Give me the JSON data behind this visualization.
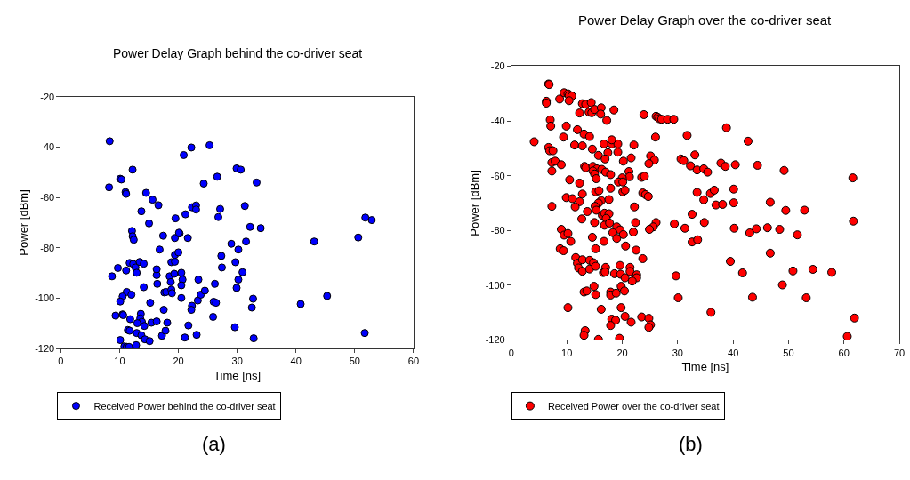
{
  "chart_data": [
    {
      "type": "scatter",
      "title": "Power Delay Graph behind the co-driver seat",
      "xlabel": "Time [ns]",
      "ylabel": "Power [dBm]",
      "xlim": [
        0,
        60
      ],
      "ylim": [
        -120,
        -20
      ],
      "xticks": [
        0,
        10,
        20,
        30,
        40,
        50,
        60
      ],
      "yticks": [
        -120,
        -100,
        -80,
        -60,
        -40,
        -20
      ],
      "marker": "circle",
      "legend": "bottom left",
      "annotations": [
        "(a)"
      ],
      "series": [
        {
          "name": "Received Power behind the co-driver seat",
          "color": "#0000ff",
          "x": [
            8.3,
            8.2,
            8.7,
            9.7,
            10.1,
            10.3,
            12.2,
            11,
            11.1,
            14.5,
            15.6,
            16.6,
            13.7,
            15,
            12.1,
            12.2,
            12.4,
            11.1,
            11.7,
            12.3,
            12.7,
            12.9,
            13.4,
            14.1,
            14.1,
            11.2,
            10.5,
            10.1,
            12,
            9.3,
            10.5,
            10.6,
            11.8,
            13.6,
            13.5,
            13.8,
            14.2,
            13,
            11.4,
            11.7,
            12.9,
            13.7,
            14.3,
            15.1,
            10.1,
            12.8,
            10.8,
            11.2,
            11.6,
            15.4,
            16.3,
            15.2,
            16.4,
            16.3,
            16.3,
            16.8,
            17.4,
            17.5,
            17.2,
            17.8,
            18.1,
            17.6,
            17.9,
            18.5,
            18.7,
            18.8,
            18.9,
            18.8,
            19.4,
            19.3,
            19.4,
            20,
            19.4,
            20.2,
            20.1,
            19.5,
            20.5,
            20.7,
            20.5,
            20.5,
            20.9,
            22.2,
            21.2,
            21.6,
            22.3,
            23,
            23,
            22.3,
            22.2,
            21.7,
            21.1,
            23.1,
            23.3,
            23.8,
            24.5,
            23.4,
            24.3,
            25.3,
            26.2,
            26,
            26.4,
            25.9,
            26.6,
            26.8,
            27.1,
            27.3,
            27.4,
            29,
            30.2,
            29.7,
            30.2,
            29.9,
            29.6,
            29.9,
            30.6,
            30.9,
            31.3,
            31.5,
            32.2,
            33.3,
            34,
            32.7,
            32.5,
            32.8,
            43.1,
            45.3,
            40.8,
            50.6,
            51.8,
            52.9,
            51.7
          ],
          "values": [
            -37.7,
            -56,
            -91.3,
            -88,
            -52.6,
            -52.9,
            -49,
            -57.9,
            -58.6,
            -58.2,
            -60.9,
            -63.1,
            -65.5,
            -70.3,
            -73.3,
            -75.4,
            -76.8,
            -89,
            -86,
            -86.4,
            -87.8,
            -89.9,
            -85.6,
            -86.3,
            -95.6,
            -97.5,
            -99.3,
            -101.3,
            -98.6,
            -106.9,
            -106.4,
            -106.7,
            -108.3,
            -106.2,
            -108,
            -109.4,
            -111,
            -109.9,
            -112.6,
            -112.9,
            -113.8,
            -114.7,
            -116.3,
            -117,
            -116.6,
            -118.6,
            -119.1,
            -119.3,
            -119.3,
            -109.7,
            -109.2,
            -101.8,
            -94.3,
            -90.8,
            -88.5,
            -80.7,
            -75.2,
            -104.6,
            -114.9,
            -112.9,
            -109.7,
            -97.7,
            -97.5,
            -91.3,
            -93.6,
            -96.6,
            -98,
            -85.7,
            -85.5,
            -90.3,
            -82.8,
            -81.8,
            -76.1,
            -74.3,
            -74,
            -68.3,
            -89.9,
            -92.6,
            -94.9,
            -99.9,
            -43.2,
            -40.2,
            -66.7,
            -76.1,
            -63.9,
            -63.2,
            -64.8,
            -103,
            -104.6,
            -110.8,
            -115.6,
            -114.5,
            -100.9,
            -98.6,
            -97,
            -92.6,
            -54.5,
            -39.3,
            -94.3,
            -101.4,
            -101.8,
            -107.4,
            -51.8,
            -67.8,
            -64.6,
            -83.2,
            -87.8,
            -78.4,
            -80.7,
            -85.7,
            -92.6,
            -95.9,
            -111.5,
            -48.5,
            -49,
            -89.7,
            -63.4,
            -77.5,
            -71.7,
            -54.1,
            -72.2,
            -100.2,
            -103.7,
            -115.9,
            -77.5,
            -99.1,
            -102.3,
            -75.9,
            -68,
            -69,
            -113.8
          ]
        }
      ]
    },
    {
      "type": "scatter",
      "title": "Power Delay Graph over the co-driver seat",
      "xlabel": "Time [ns]",
      "ylabel": "Power [dBm]",
      "xlim": [
        0,
        70
      ],
      "ylim": [
        -120,
        -20
      ],
      "xticks": [
        0,
        10,
        20,
        30,
        40,
        50,
        60,
        70
      ],
      "yticks": [
        -120,
        -100,
        -80,
        -60,
        -40,
        -20
      ],
      "marker": "circle",
      "legend": "bottom left",
      "annotations": [
        "(b)"
      ],
      "series": [
        {
          "name": "Received Power over the co-driver seat",
          "color": "#ff0000",
          "x": [
            4.1,
            6.7,
            6.8,
            6.3,
            6.3,
            7,
            7.1,
            6.7,
            6.9,
            7.5,
            7.3,
            7.9,
            9,
            7.3,
            7.3,
            8.7,
            9.5,
            10.2,
            10.4,
            10.9,
            10.4,
            9.9,
            9.4,
            11.9,
            12.3,
            12.8,
            13.4,
            14.4,
            14,
            14.5,
            15,
            16.2,
            16.1,
            17.2,
            18.5,
            13.1,
            14.1,
            11.4,
            12.8,
            14.6,
            16.7,
            18.1,
            19.2,
            18.1,
            22.1,
            17.4,
            19.2,
            15.7,
            16.9,
            21.6,
            20.2,
            13.2,
            13.4,
            14.7,
            15.4,
            16.3,
            17,
            17.9,
            14.7,
            15,
            15.3,
            10.5,
            12.3,
            21.2,
            21.3,
            20,
            19.3,
            20.1,
            17.9,
            15.2,
            15.8,
            20.1,
            20.5,
            12.8,
            9.9,
            11,
            12.3,
            11.5,
            16.2,
            15.7,
            15.1,
            15.3,
            17.6,
            22.2,
            13.7,
            16.4,
            16.8,
            17.6,
            17.1,
            16.8,
            17.7,
            12.7,
            15,
            22.4,
            19,
            19.6,
            18.3,
            19,
            20.2,
            22,
            9,
            9.5,
            10.2,
            10.7,
            14.6,
            16.7,
            20.6,
            8.8,
            9.4,
            15.2,
            22.5,
            23.7,
            11.6,
            11.9,
            12.1,
            12.8,
            12.8,
            14.1,
            14.8,
            14.1,
            15.2,
            17,
            16.6,
            16.9,
            19.6,
            18.6,
            19.7,
            20.5,
            21.4,
            21.4,
            22.6,
            22.6,
            21.8,
            13.1,
            13.6,
            14.9,
            15.2,
            17.9,
            17.9,
            18.9,
            19.8,
            20.4,
            10.2,
            16.2,
            19.8,
            20.5,
            18.1,
            18.8,
            17.9,
            21.6,
            23.5,
            13.3,
            13.1,
            15.7,
            19.5,
            23.9,
            26.1,
            26.4,
            26.7,
            27.1,
            28.2,
            29.3,
            26,
            25.1,
            25.8,
            24.8,
            23.5,
            24,
            23.7,
            24.2,
            24.7,
            26.1,
            25.6,
            24.9,
            24.8,
            25.1,
            24.8,
            29.4,
            29.7,
            30.1,
            31.7,
            30.6,
            31.1,
            33.1,
            32.3,
            33.5,
            34.7,
            35.4,
            33.5,
            34.7,
            32.6,
            31.3,
            34.8,
            32.6,
            33.6,
            36,
            35.9,
            36.6,
            36.9,
            38.1,
            37.8,
            38.6,
            38.8,
            40.4,
            40.1,
            40.1,
            40.2,
            39.5,
            41.7,
            42.7,
            44.4,
            43,
            44.2,
            43.5,
            46.7,
            46.2,
            46.7,
            49.2,
            49.5,
            48.4,
            48.9,
            51.6,
            52.9,
            50.8,
            53.2,
            54.4,
            57.8,
            61.6,
            61.7,
            61.9,
            60.6
          ],
          "values": [
            -47.6,
            -26.5,
            -26.7,
            -32.8,
            -33.5,
            -39.6,
            -41.9,
            -49.7,
            -50.9,
            -50.9,
            -55.2,
            -54.7,
            -56,
            -58.3,
            -71.2,
            -32,
            -29.7,
            -30.1,
            -30.7,
            -30.9,
            -32.6,
            -41.9,
            -45.9,
            -43.2,
            -37.1,
            -33.7,
            -33.9,
            -33.3,
            -36.8,
            -37,
            -35.8,
            -35.2,
            -37.5,
            -39.8,
            -36,
            -44.8,
            -45.7,
            -48.8,
            -49.1,
            -50.3,
            -48.4,
            -48.4,
            -48.4,
            -46.9,
            -48.8,
            -51.6,
            -51.4,
            -52.6,
            -53.9,
            -53.5,
            -54.7,
            -56.6,
            -57.1,
            -56.6,
            -57.5,
            -57.7,
            -58.7,
            -59.6,
            -58.3,
            -59.4,
            -61.1,
            -61.5,
            -62.7,
            -58.5,
            -60.4,
            -60.8,
            -62.3,
            -62.3,
            -64.6,
            -65.9,
            -65.5,
            -65.9,
            -65.3,
            -66.7,
            -68,
            -68.4,
            -69.5,
            -71.4,
            -69.1,
            -70,
            -71.2,
            -72.6,
            -68.7,
            -71.4,
            -73.1,
            -74.5,
            -73.7,
            -73.9,
            -75.6,
            -78.1,
            -77.3,
            -75.8,
            -77.1,
            -77.1,
            -78.7,
            -79.8,
            -80.8,
            -82.9,
            -81.5,
            -80.6,
            -79.6,
            -81.7,
            -81.1,
            -84,
            -82.5,
            -84,
            -85.7,
            -86.7,
            -87.4,
            -86.7,
            -87.2,
            -90.3,
            -89.9,
            -92,
            -93.7,
            -94.9,
            -90.7,
            -90.9,
            -91.8,
            -94.1,
            -93.1,
            -93.5,
            -95.4,
            -95.2,
            -92.8,
            -95.8,
            -96,
            -97.3,
            -93.5,
            -95,
            -96.2,
            -97.3,
            -98.5,
            -102.5,
            -102.1,
            -100.4,
            -103.4,
            -102.5,
            -103.6,
            -102.9,
            -100.4,
            -102.1,
            -108.2,
            -108.8,
            -108.2,
            -111.4,
            -112.4,
            -112.8,
            -114.7,
            -113.5,
            -111.6,
            -116.6,
            -118.3,
            -119.8,
            -119.4,
            -37.7,
            -38.3,
            -38.7,
            -39.2,
            -39.4,
            -39.4,
            -39.4,
            -45.9,
            -52.8,
            -54.3,
            -55.6,
            -60.6,
            -60.2,
            -66.3,
            -66.9,
            -67.6,
            -77.1,
            -78.7,
            -79.6,
            -112.1,
            -114.5,
            -115.4,
            -77.6,
            -96.6,
            -104.6,
            -45.3,
            -53.9,
            -54.5,
            -52.4,
            -56.4,
            -57.9,
            -57.5,
            -58.7,
            -66.1,
            -68.8,
            -74.1,
            -79.2,
            -77.1,
            -84.2,
            -83.4,
            -109.9,
            -66.5,
            -65.3,
            -70.7,
            -70.5,
            -55.4,
            -56.6,
            -42.5,
            -56,
            -64.9,
            -69.9,
            -79.2,
            -91.3,
            -95.5,
            -47.4,
            -56.2,
            -80.9,
            -79.4,
            -104.4,
            -69.7,
            -79,
            -88.3,
            -58.1,
            -72.7,
            -79.6,
            -99.9,
            -81.6,
            -72.6,
            -94.8,
            -104.6,
            -94.2,
            -95.3,
            -60.8,
            -76.6,
            -112,
            -118.7
          ]
        }
      ]
    }
  ]
}
